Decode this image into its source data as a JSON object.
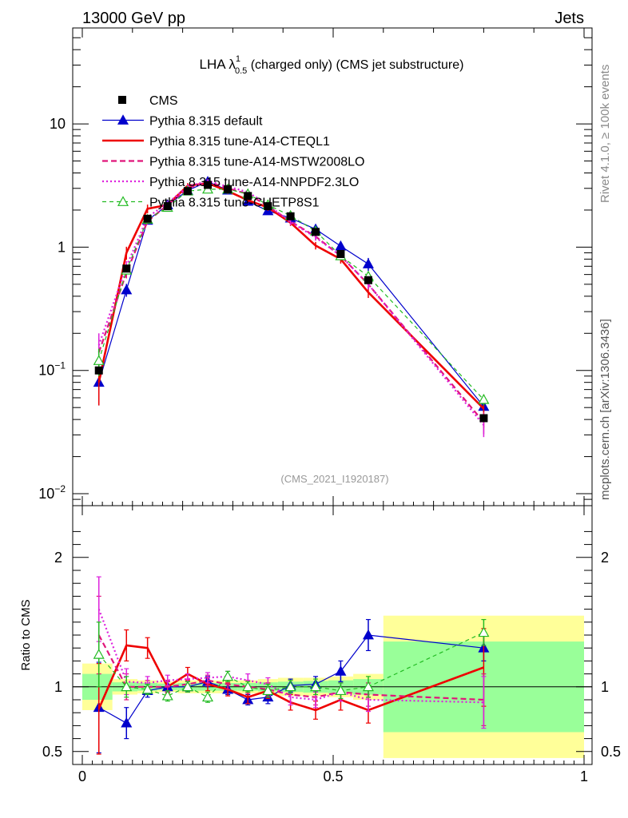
{
  "header": {
    "left": "13000 GeV pp",
    "right": "Jets"
  },
  "side_labels": {
    "rivet": "Rivet 4.1.0, ≥ 100k events",
    "mcplots": "mcplots.cern.ch [arXiv:1306.3436]"
  },
  "watermark": "(CMS_2021_I1920187)",
  "colors": {
    "cms": "#000000",
    "default": "#0000cc",
    "cteql1": "#ee0000",
    "mstw": "#e0157a",
    "nnpdf": "#dd22dd",
    "cuetp8s1": "#22bb22",
    "band_outer": "#ffff99",
    "band_inner": "#99ff99"
  },
  "chart_data": {
    "type": "line",
    "title": {
      "main": "LHA λ",
      "sup": "1",
      "sub": "0.5",
      "rest": " (charged only) (CMS jet substructure)"
    },
    "xlabel": "",
    "ylabel_ratio": "Ratio to CMS",
    "xlim": [
      0,
      1
    ],
    "ylim_main": [
      0.008,
      60
    ],
    "ylim_ratio": [
      0.4,
      2.4
    ],
    "x_tick_labels": [
      "0",
      "0.5",
      "1"
    ],
    "main_y_tick_labels": [
      {
        "base": "10",
        "exp": "−2",
        "value": 0.01
      },
      {
        "base": "10",
        "exp": "−1",
        "value": 0.1
      },
      {
        "base": "1",
        "exp": "",
        "value": 1
      },
      {
        "base": "10",
        "exp": "",
        "value": 10
      }
    ],
    "ratio_y_tick_labels": [
      {
        "label": "0.5",
        "value": 0.5
      },
      {
        "label": "1",
        "value": 1
      },
      {
        "label": "2",
        "value": 2
      }
    ],
    "x": [
      0.033,
      0.088,
      0.13,
      0.17,
      0.21,
      0.25,
      0.29,
      0.33,
      0.37,
      0.415,
      0.465,
      0.515,
      0.57,
      0.8
    ],
    "bin_edges": [
      0.0,
      0.06,
      0.11,
      0.15,
      0.19,
      0.23,
      0.27,
      0.31,
      0.35,
      0.39,
      0.44,
      0.49,
      0.54,
      0.6,
      1.0
    ],
    "uncertainty_band": {
      "outer": [
        0.18,
        0.06,
        0.05,
        0.04,
        0.05,
        0.05,
        0.05,
        0.05,
        0.06,
        0.07,
        0.07,
        0.08,
        0.1,
        0.55
      ],
      "inner": [
        0.1,
        0.035,
        0.03,
        0.025,
        0.03,
        0.03,
        0.03,
        0.03,
        0.035,
        0.04,
        0.045,
        0.05,
        0.06,
        0.35
      ]
    },
    "series": [
      {
        "name": "CMS",
        "key": "cms",
        "style": "data",
        "marker": "square",
        "values": [
          0.1,
          0.67,
          1.7,
          2.15,
          2.85,
          3.2,
          2.95,
          2.6,
          2.15,
          1.78,
          1.33,
          0.88,
          0.54,
          0.041
        ],
        "ratio": [
          1,
          1,
          1,
          1,
          1,
          1,
          1,
          1,
          1,
          1,
          1,
          1,
          1,
          1
        ]
      },
      {
        "name": "Pythia 8.315 default",
        "key": "default",
        "style": "solid-thin",
        "marker": "triangle",
        "values": [
          0.08,
          0.45,
          1.65,
          2.2,
          2.88,
          3.4,
          2.9,
          2.35,
          1.97,
          1.72,
          1.4,
          1.02,
          0.73,
          0.051
        ],
        "ratio": [
          0.84,
          0.72,
          0.97,
          1.0,
          1.0,
          1.04,
          0.98,
          0.9,
          0.92,
          1.01,
          1.02,
          1.12,
          1.4,
          1.3
        ],
        "ratio_err": [
          0.35,
          0.12,
          0.05,
          0.04,
          0.04,
          0.04,
          0.04,
          0.04,
          0.05,
          0.05,
          0.06,
          0.08,
          0.12,
          0.1
        ]
      },
      {
        "name": "Pythia 8.315 tune-A14-CTEQL1",
        "key": "cteql1",
        "style": "solid-thick",
        "marker": "none",
        "values": [
          0.08,
          0.9,
          2.05,
          2.2,
          3.15,
          3.3,
          2.85,
          2.4,
          2.1,
          1.58,
          1.03,
          0.8,
          0.43,
          0.049
        ],
        "ratio": [
          0.83,
          1.32,
          1.3,
          1.0,
          1.1,
          1.02,
          0.98,
          0.92,
          0.97,
          0.88,
          0.82,
          0.9,
          0.82,
          1.15
        ],
        "ratio_err": [
          0.35,
          0.12,
          0.08,
          0.05,
          0.05,
          0.05,
          0.05,
          0.05,
          0.06,
          0.06,
          0.07,
          0.08,
          0.1,
          0.3
        ]
      },
      {
        "name": "Pythia 8.315 tune-A14-MSTW2008LO",
        "key": "mstw",
        "style": "dashed",
        "marker": "none",
        "values": [
          0.14,
          0.62,
          1.62,
          2.2,
          3.0,
          3.4,
          3.0,
          2.7,
          2.15,
          1.62,
          1.22,
          0.85,
          0.5,
          0.038
        ],
        "ratio": [
          1.4,
          1.0,
          1.0,
          1.0,
          1.02,
          1.05,
          1.02,
          1.0,
          0.98,
          0.94,
          0.92,
          0.96,
          0.94,
          0.9
        ],
        "ratio_err": [
          0.3,
          0.1,
          0.05,
          0.04,
          0.04,
          0.04,
          0.04,
          0.05,
          0.05,
          0.06,
          0.06,
          0.07,
          0.09,
          0.2
        ]
      },
      {
        "name": "Pythia 8.315 tune-A14-NNPDF2.3LO",
        "key": "nnpdf",
        "style": "dotted",
        "marker": "none",
        "values": [
          0.16,
          0.7,
          1.75,
          2.28,
          3.1,
          3.45,
          3.1,
          2.8,
          2.2,
          1.6,
          1.2,
          0.85,
          0.5,
          0.036
        ],
        "ratio": [
          1.6,
          1.04,
          1.03,
          1.05,
          1.06,
          1.07,
          1.08,
          1.05,
          1.02,
          0.92,
          0.9,
          0.96,
          0.9,
          0.88
        ],
        "ratio_err": [
          0.25,
          0.1,
          0.05,
          0.04,
          0.04,
          0.04,
          0.04,
          0.05,
          0.05,
          0.06,
          0.06,
          0.07,
          0.09,
          0.2
        ]
      },
      {
        "name": "Pythia 8.315 tune-CUETP8S1",
        "key": "cuetp8s1",
        "style": "dashed-thin",
        "marker": "open-triangle",
        "values": [
          0.12,
          0.65,
          1.68,
          2.1,
          2.85,
          2.95,
          2.95,
          2.7,
          2.2,
          1.8,
          1.35,
          0.85,
          0.58,
          0.058
        ],
        "ratio": [
          1.25,
          1.0,
          0.98,
          0.93,
          1.0,
          0.92,
          1.08,
          1.0,
          0.97,
          1.0,
          1.0,
          0.97,
          1.0,
          1.42
        ],
        "ratio_err": [
          0.25,
          0.08,
          0.04,
          0.04,
          0.04,
          0.04,
          0.04,
          0.04,
          0.05,
          0.05,
          0.06,
          0.06,
          0.08,
          0.1
        ]
      }
    ]
  }
}
